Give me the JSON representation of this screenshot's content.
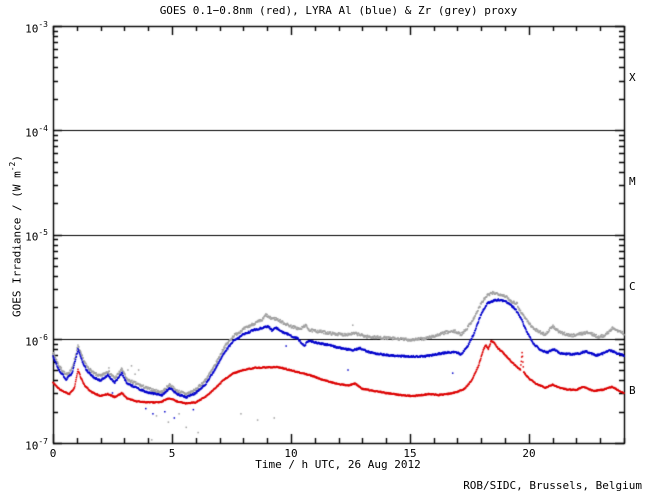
{
  "title": "GOES 0.1−0.8nm (red), LYRA Al (blue) & Zr (grey) proxy",
  "credit": "ROB/SIDC, Brussels, Belgium",
  "colors": {
    "goes_red": "#dd0000",
    "lyra_al_blue": "#0000cc",
    "lyra_zr_grey": "#a0a0a0",
    "axis": "#000000",
    "background": "#ffffff"
  },
  "yaxis": {
    "label_prefix": "GOES Irradiance / (W m",
    "label_exp": "-2",
    "label_suffix": ")",
    "ticks": [
      {
        "base": "10",
        "exp": "-3"
      },
      {
        "base": "10",
        "exp": "-4"
      },
      {
        "base": "10",
        "exp": "-5"
      },
      {
        "base": "10",
        "exp": "-6"
      },
      {
        "base": "10",
        "exp": "-7"
      }
    ]
  },
  "xaxis": {
    "label": "Time / h UTC, 26 Aug 2012",
    "ticks": [
      "0",
      "5",
      "10",
      "15",
      "20"
    ]
  },
  "flare_classes": [
    "X",
    "M",
    "C",
    "B"
  ],
  "chart_data": {
    "type": "scatter",
    "title": "GOES 0.1-0.8nm (red), LYRA Al (blue) & Zr (grey) proxy",
    "xlabel": "Time / h UTC, 26 Aug 2012",
    "ylabel": "GOES Irradiance / (W m^-2)",
    "x_range_hours": [
      0,
      24
    ],
    "x_minor_step": 1,
    "x_major_step": 5,
    "y_log10_range": [
      -7,
      -3
    ],
    "reference_lines_log10": [
      -4,
      -5,
      -6
    ],
    "legend_position": "none",
    "grid": false,
    "series": [
      {
        "name": "LYRA Zr proxy",
        "color": "#a0a0a0",
        "points_h_log10": [
          [
            0,
            -6.13
          ],
          [
            0.25,
            -6.26
          ],
          [
            0.55,
            -6.35
          ],
          [
            0.8,
            -6.29
          ],
          [
            0.95,
            -6.16
          ],
          [
            1.05,
            -6.07
          ],
          [
            1.2,
            -6.16
          ],
          [
            1.4,
            -6.26
          ],
          [
            1.7,
            -6.33
          ],
          [
            2.0,
            -6.36
          ],
          [
            2.3,
            -6.31
          ],
          [
            2.6,
            -6.38
          ],
          [
            2.9,
            -6.29
          ],
          [
            3.1,
            -6.39
          ],
          [
            3.5,
            -6.43
          ],
          [
            3.9,
            -6.47
          ],
          [
            4.3,
            -6.5
          ],
          [
            4.6,
            -6.51
          ],
          [
            4.9,
            -6.44
          ],
          [
            5.2,
            -6.5
          ],
          [
            5.6,
            -6.53
          ],
          [
            6.0,
            -6.49
          ],
          [
            6.4,
            -6.4
          ],
          [
            6.8,
            -6.26
          ],
          [
            7.2,
            -6.08
          ],
          [
            7.6,
            -5.97
          ],
          [
            8.0,
            -5.91
          ],
          [
            8.4,
            -5.86
          ],
          [
            8.8,
            -5.82
          ],
          [
            8.95,
            -5.77
          ],
          [
            9.1,
            -5.8
          ],
          [
            9.4,
            -5.81
          ],
          [
            9.7,
            -5.85
          ],
          [
            10.0,
            -5.88
          ],
          [
            10.4,
            -5.91
          ],
          [
            10.6,
            -5.87
          ],
          [
            10.8,
            -5.92
          ],
          [
            11.2,
            -5.93
          ],
          [
            11.7,
            -5.95
          ],
          [
            12.2,
            -5.96
          ],
          [
            12.7,
            -5.95
          ],
          [
            13.2,
            -5.98
          ],
          [
            13.8,
            -5.99
          ],
          [
            14.4,
            -6.0
          ],
          [
            15.0,
            -6.01
          ],
          [
            15.6,
            -6.0
          ],
          [
            16.1,
            -5.97
          ],
          [
            16.5,
            -5.94
          ],
          [
            16.9,
            -5.93
          ],
          [
            17.15,
            -5.96
          ],
          [
            17.4,
            -5.9
          ],
          [
            17.7,
            -5.8
          ],
          [
            18.0,
            -5.66
          ],
          [
            18.25,
            -5.585
          ],
          [
            18.5,
            -5.56
          ],
          [
            18.75,
            -5.57
          ],
          [
            19.0,
            -5.59
          ],
          [
            19.25,
            -5.64
          ],
          [
            19.5,
            -5.66
          ],
          [
            19.6,
            -5.72
          ],
          [
            19.85,
            -5.8
          ],
          [
            20.1,
            -5.88
          ],
          [
            20.4,
            -5.93
          ],
          [
            20.7,
            -5.96
          ],
          [
            21.0,
            -5.88
          ],
          [
            21.3,
            -5.94
          ],
          [
            21.8,
            -5.97
          ],
          [
            22.2,
            -5.95
          ],
          [
            22.5,
            -5.94
          ],
          [
            22.9,
            -5.98
          ],
          [
            23.2,
            -5.97
          ],
          [
            23.5,
            -5.9
          ],
          [
            23.75,
            -5.92
          ],
          [
            24,
            -5.95
          ]
        ],
        "outliers_h_log10": [
          [
            2.35,
            -6.28
          ],
          [
            3.15,
            -6.3
          ],
          [
            3.3,
            -6.26
          ],
          [
            3.45,
            -6.34
          ],
          [
            3.6,
            -6.3
          ],
          [
            4.15,
            -6.97
          ],
          [
            4.35,
            -6.74
          ],
          [
            4.85,
            -6.8
          ],
          [
            5.3,
            -6.72
          ],
          [
            5.6,
            -6.85
          ],
          [
            6.1,
            -6.9
          ],
          [
            7.9,
            -6.72
          ],
          [
            8.6,
            -6.78
          ],
          [
            9.3,
            -6.76
          ],
          [
            12.6,
            -5.87
          ]
        ]
      },
      {
        "name": "LYRA Al proxy",
        "color": "#0000cc",
        "points_h_log10": [
          [
            0,
            -6.17
          ],
          [
            0.25,
            -6.3
          ],
          [
            0.55,
            -6.39
          ],
          [
            0.8,
            -6.33
          ],
          [
            0.95,
            -6.2
          ],
          [
            1.05,
            -6.1
          ],
          [
            1.2,
            -6.2
          ],
          [
            1.4,
            -6.3
          ],
          [
            1.7,
            -6.37
          ],
          [
            2.0,
            -6.4
          ],
          [
            2.3,
            -6.35
          ],
          [
            2.6,
            -6.42
          ],
          [
            2.9,
            -6.33
          ],
          [
            3.1,
            -6.43
          ],
          [
            3.5,
            -6.47
          ],
          [
            3.9,
            -6.51
          ],
          [
            4.3,
            -6.53
          ],
          [
            4.6,
            -6.54
          ],
          [
            4.9,
            -6.47
          ],
          [
            5.2,
            -6.53
          ],
          [
            5.6,
            -6.56
          ],
          [
            6.0,
            -6.52
          ],
          [
            6.4,
            -6.44
          ],
          [
            6.8,
            -6.3
          ],
          [
            7.2,
            -6.13
          ],
          [
            7.6,
            -6.02
          ],
          [
            8.0,
            -5.96
          ],
          [
            8.4,
            -5.92
          ],
          [
            8.8,
            -5.895
          ],
          [
            9.05,
            -5.88
          ],
          [
            9.2,
            -5.92
          ],
          [
            9.35,
            -5.89
          ],
          [
            9.6,
            -5.93
          ],
          [
            9.9,
            -5.96
          ],
          [
            10.3,
            -6.0
          ],
          [
            10.55,
            -6.07
          ],
          [
            10.75,
            -6.02
          ],
          [
            11.1,
            -6.04
          ],
          [
            11.6,
            -6.06
          ],
          [
            12.1,
            -6.09
          ],
          [
            12.6,
            -6.11
          ],
          [
            12.9,
            -6.09
          ],
          [
            13.3,
            -6.13
          ],
          [
            13.8,
            -6.15
          ],
          [
            14.4,
            -6.165
          ],
          [
            15.0,
            -6.17
          ],
          [
            15.6,
            -6.17
          ],
          [
            16.1,
            -6.15
          ],
          [
            16.6,
            -6.13
          ],
          [
            16.9,
            -6.125
          ],
          [
            17.15,
            -6.15
          ],
          [
            17.4,
            -6.08
          ],
          [
            17.7,
            -5.95
          ],
          [
            18.0,
            -5.76
          ],
          [
            18.25,
            -5.66
          ],
          [
            18.5,
            -5.635
          ],
          [
            18.75,
            -5.625
          ],
          [
            19.0,
            -5.64
          ],
          [
            19.25,
            -5.68
          ],
          [
            19.45,
            -5.72
          ],
          [
            19.7,
            -5.82
          ],
          [
            19.95,
            -5.95
          ],
          [
            20.2,
            -6.05
          ],
          [
            20.5,
            -6.11
          ],
          [
            20.8,
            -6.13
          ],
          [
            21.05,
            -6.1
          ],
          [
            21.35,
            -6.14
          ],
          [
            21.8,
            -6.15
          ],
          [
            22.15,
            -6.14
          ],
          [
            22.4,
            -6.12
          ],
          [
            22.8,
            -6.16
          ],
          [
            23.15,
            -6.14
          ],
          [
            23.4,
            -6.11
          ],
          [
            23.7,
            -6.14
          ],
          [
            24,
            -6.16
          ]
        ],
        "outliers_h_log10": [
          [
            2.5,
            -6.52
          ],
          [
            3.9,
            -6.67
          ],
          [
            4.2,
            -6.72
          ],
          [
            4.7,
            -6.7
          ],
          [
            5.1,
            -6.76
          ],
          [
            5.9,
            -6.68
          ],
          [
            9.8,
            -6.07
          ],
          [
            12.4,
            -6.3
          ],
          [
            16.8,
            -6.33
          ]
        ]
      },
      {
        "name": "GOES 0.1-0.8nm",
        "color": "#dd0000",
        "points_h_log10": [
          [
            0,
            -6.42
          ],
          [
            0.2,
            -6.47
          ],
          [
            0.45,
            -6.51
          ],
          [
            0.7,
            -6.53
          ],
          [
            0.9,
            -6.47
          ],
          [
            1.0,
            -6.36
          ],
          [
            1.05,
            -6.3
          ],
          [
            1.15,
            -6.36
          ],
          [
            1.3,
            -6.44
          ],
          [
            1.6,
            -6.51
          ],
          [
            2.0,
            -6.55
          ],
          [
            2.3,
            -6.53
          ],
          [
            2.6,
            -6.56
          ],
          [
            2.9,
            -6.52
          ],
          [
            3.1,
            -6.57
          ],
          [
            3.5,
            -6.6
          ],
          [
            4.0,
            -6.61
          ],
          [
            4.5,
            -6.61
          ],
          [
            4.9,
            -6.57
          ],
          [
            5.2,
            -6.6
          ],
          [
            5.6,
            -6.62
          ],
          [
            6.0,
            -6.61
          ],
          [
            6.4,
            -6.56
          ],
          [
            6.8,
            -6.48
          ],
          [
            7.2,
            -6.39
          ],
          [
            7.6,
            -6.33
          ],
          [
            8.0,
            -6.3
          ],
          [
            8.5,
            -6.28
          ],
          [
            9.0,
            -6.275
          ],
          [
            9.4,
            -6.27
          ],
          [
            9.8,
            -6.29
          ],
          [
            10.3,
            -6.32
          ],
          [
            10.8,
            -6.35
          ],
          [
            11.3,
            -6.39
          ],
          [
            11.9,
            -6.43
          ],
          [
            12.4,
            -6.45
          ],
          [
            12.7,
            -6.43
          ],
          [
            13.0,
            -6.48
          ],
          [
            13.5,
            -6.5
          ],
          [
            14.0,
            -6.52
          ],
          [
            14.6,
            -6.54
          ],
          [
            15.2,
            -6.55
          ],
          [
            15.8,
            -6.53
          ],
          [
            16.2,
            -6.54
          ],
          [
            16.6,
            -6.53
          ],
          [
            17.0,
            -6.51
          ],
          [
            17.3,
            -6.48
          ],
          [
            17.6,
            -6.4
          ],
          [
            17.9,
            -6.25
          ],
          [
            18.1,
            -6.1
          ],
          [
            18.2,
            -6.06
          ],
          [
            18.3,
            -6.1
          ],
          [
            18.42,
            -6.02
          ],
          [
            18.55,
            -6.04
          ],
          [
            18.7,
            -6.09
          ],
          [
            18.9,
            -6.13
          ],
          [
            19.1,
            -6.18
          ],
          [
            19.4,
            -6.25
          ],
          [
            19.65,
            -6.3
          ],
          [
            19.72,
            -6.12
          ],
          [
            19.78,
            -6.32
          ],
          [
            20.0,
            -6.38
          ],
          [
            20.3,
            -6.43
          ],
          [
            20.7,
            -6.47
          ],
          [
            21.0,
            -6.44
          ],
          [
            21.3,
            -6.47
          ],
          [
            21.7,
            -6.49
          ],
          [
            22.0,
            -6.49
          ],
          [
            22.3,
            -6.46
          ],
          [
            22.7,
            -6.5
          ],
          [
            23.1,
            -6.49
          ],
          [
            23.5,
            -6.46
          ],
          [
            23.8,
            -6.5
          ],
          [
            24,
            -6.52
          ]
        ],
        "outliers_h_log10": []
      }
    ]
  }
}
